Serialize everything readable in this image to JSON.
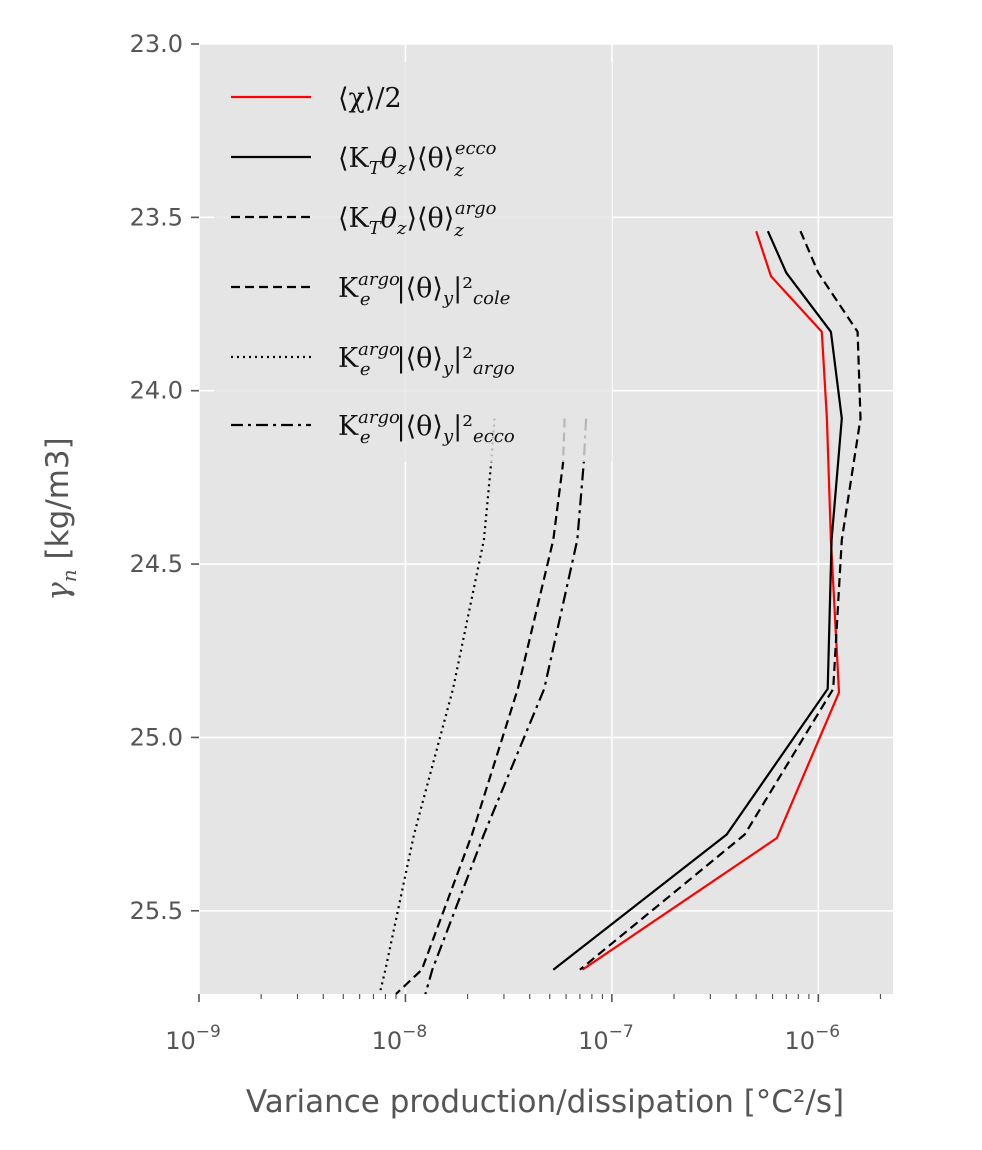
{
  "chart_data": {
    "type": "line",
    "xscale": "log",
    "xlim": [
      1e-09,
      2.3e-06
    ],
    "ylim": [
      25.74,
      23.0
    ],
    "xlabel": "Variance production/dissipation [°C²/s]",
    "ylabel": "γn [kg/m3]",
    "ylabel_main": "γ",
    "ylabel_sub": "n",
    "ylabel_unit": " [kg/m3]",
    "x_ticks": [
      {
        "value": 1e-09,
        "base": "10",
        "exp": "−9"
      },
      {
        "value": 1e-08,
        "base": "10",
        "exp": "−8"
      },
      {
        "value": 1e-07,
        "base": "10",
        "exp": "−7"
      },
      {
        "value": 1e-06,
        "base": "10",
        "exp": "−6"
      }
    ],
    "y_ticks": [
      {
        "value": 23.0,
        "label": "23.0"
      },
      {
        "value": 23.5,
        "label": "23.5"
      },
      {
        "value": 24.0,
        "label": "24.0"
      },
      {
        "value": 24.5,
        "label": "24.5"
      },
      {
        "value": 25.0,
        "label": "25.0"
      },
      {
        "value": 25.5,
        "label": "25.5"
      }
    ],
    "grid": true,
    "legend_position": "top-left",
    "series": [
      {
        "name": "⟨χ⟩/2",
        "color": "#ff0000",
        "dash": "",
        "points": [
          [
            5e-07,
            23.54
          ],
          [
            5.9e-07,
            23.67
          ],
          [
            1.04e-06,
            23.83
          ],
          [
            1.1e-06,
            24.08
          ],
          [
            1.15e-06,
            24.43
          ],
          [
            1.26e-06,
            24.87
          ],
          [
            6.3e-07,
            25.29
          ],
          [
            7.2e-08,
            25.67
          ]
        ]
      },
      {
        "name": "⟨K_Tθ_z⟩⟨θ⟩_z^ecco",
        "color": "#000000",
        "dash": "",
        "points": [
          [
            5.7e-07,
            23.54
          ],
          [
            7e-07,
            23.66
          ],
          [
            1.15e-06,
            23.83
          ],
          [
            1.3e-06,
            24.08
          ],
          [
            1.16e-06,
            24.43
          ],
          [
            1.11e-06,
            24.86
          ],
          [
            3.6e-07,
            25.28
          ],
          [
            5.2e-08,
            25.67
          ]
        ]
      },
      {
        "name": "⟨K_Tθ_z⟩⟨θ⟩_z^argo",
        "color": "#000000",
        "dash": "9 5",
        "points": [
          [
            8.2e-07,
            23.54
          ],
          [
            1e-06,
            23.66
          ],
          [
            1.55e-06,
            23.83
          ],
          [
            1.6e-06,
            24.08
          ],
          [
            1.3e-06,
            24.43
          ],
          [
            1.18e-06,
            24.86
          ],
          [
            4.4e-07,
            25.28
          ],
          [
            7e-08,
            25.67
          ]
        ]
      },
      {
        "name": "K_e^argo|⟨θ⟩_y|²_cole",
        "color": "#000000",
        "dash": "9 5",
        "points": [
          [
            5.9e-08,
            24.08
          ],
          [
            5.8e-08,
            24.21
          ],
          [
            5.2e-08,
            24.43
          ],
          [
            3.5e-08,
            24.86
          ],
          [
            2.1e-08,
            25.28
          ],
          [
            1.2e-08,
            25.67
          ],
          [
            9e-09,
            25.74
          ]
        ]
      },
      {
        "name": "K_e^argo|⟨θ⟩_y|²_argo",
        "color": "#000000",
        "dash": "2 4",
        "points": [
          [
            2.7e-08,
            24.08
          ],
          [
            2.6e-08,
            24.21
          ],
          [
            2.4e-08,
            24.43
          ],
          [
            1.7e-08,
            24.86
          ],
          [
            1.1e-08,
            25.28
          ],
          [
            8e-09,
            25.67
          ],
          [
            7.5e-09,
            25.74
          ]
        ]
      },
      {
        "name": "K_e^argo|⟨θ⟩_y|²_ecco",
        "color": "#000000",
        "dash": "12 5 3 5",
        "points": [
          [
            7.5e-08,
            24.08
          ],
          [
            7.3e-08,
            24.21
          ],
          [
            6.8e-08,
            24.43
          ],
          [
            4.7e-08,
            24.86
          ],
          [
            2.4e-08,
            25.28
          ],
          [
            1.35e-08,
            25.67
          ],
          [
            1.25e-08,
            25.74
          ]
        ]
      }
    ],
    "legend": [
      {
        "main": "⟨χ⟩/2",
        "sub": "",
        "sup": "",
        "tail": "",
        "tail_sub": ""
      },
      {
        "main": "⟨K",
        "sub": "T",
        "mid": "θ",
        "mid_sub": "z",
        "rest": "⟩⟨θ⟩",
        "rest_sub": "z",
        "rest_sup": "ecco"
      },
      {
        "main": "⟨K",
        "sub": "T",
        "mid": "θ",
        "mid_sub": "z",
        "rest": "⟩⟨θ⟩",
        "rest_sub": "z",
        "rest_sup": "argo"
      },
      {
        "main": "K",
        "sub": "e",
        "sup": "argo",
        "tail": "|⟨θ⟩",
        "tail_sub": "y",
        "tail2": "|²",
        "tail2_sub": "cole"
      },
      {
        "main": "K",
        "sub": "e",
        "sup": "argo",
        "tail": "|⟨θ⟩",
        "tail_sub": "y",
        "tail2": "|²",
        "tail2_sub": "argo"
      },
      {
        "main": "K",
        "sub": "e",
        "sup": "argo",
        "tail": "|⟨θ⟩",
        "tail_sub": "y",
        "tail2": "|²",
        "tail2_sub": "ecco"
      }
    ]
  }
}
